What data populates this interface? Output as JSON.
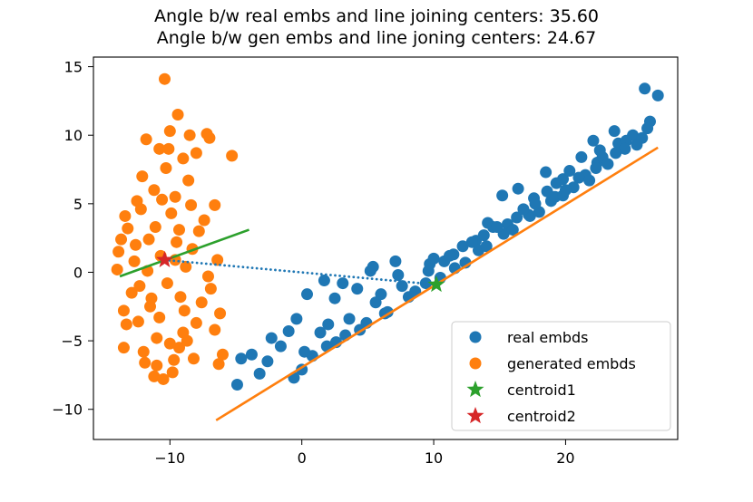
{
  "chart_data": {
    "type": "scatter",
    "title": "Angle b/w real embs and line joining centers: 35.60",
    "subtitle": "Angle b/w gen embs and line joning centers: 24.67",
    "xlabel": "",
    "ylabel": "",
    "xlim": [
      -15.8,
      28.5
    ],
    "ylim": [
      -12.2,
      15.7
    ],
    "x_ticks": [
      -10,
      0,
      10,
      20
    ],
    "y_ticks": [
      -10,
      -5,
      0,
      5,
      10,
      15
    ],
    "x_tick_labels": [
      "−10",
      "0",
      "10",
      "20"
    ],
    "y_tick_labels": [
      "−10",
      "−5",
      "0",
      "5",
      "10",
      "15"
    ],
    "grid": false,
    "legend_position": "lower-right",
    "colors": {
      "real": "#1f77b4",
      "generated": "#ff7f0e",
      "centroid1": "#2ca02c",
      "centroid2": "#d62728"
    },
    "series": [
      {
        "name": "real embds",
        "marker": "circle",
        "points": [
          [
            26.0,
            13.4
          ],
          [
            27.0,
            12.9
          ],
          [
            26.4,
            11.0
          ],
          [
            26.2,
            10.5
          ],
          [
            25.1,
            10.0
          ],
          [
            25.8,
            9.8
          ],
          [
            23.7,
            10.3
          ],
          [
            22.1,
            9.6
          ],
          [
            24.0,
            9.4
          ],
          [
            22.6,
            8.9
          ],
          [
            24.6,
            9.6
          ],
          [
            21.2,
            8.4
          ],
          [
            22.4,
            8.0
          ],
          [
            18.5,
            7.3
          ],
          [
            19.8,
            6.8
          ],
          [
            20.3,
            7.4
          ],
          [
            21.5,
            7.1
          ],
          [
            16.4,
            6.1
          ],
          [
            17.6,
            5.4
          ],
          [
            19.3,
            6.5
          ],
          [
            15.2,
            5.6
          ],
          [
            18.9,
            5.2
          ],
          [
            17.2,
            4.2
          ],
          [
            14.1,
            3.6
          ],
          [
            15.6,
            3.5
          ],
          [
            16.3,
            4.0
          ],
          [
            13.2,
            2.3
          ],
          [
            12.2,
            1.9
          ],
          [
            11.5,
            1.3
          ],
          [
            14.5,
            3.3
          ],
          [
            9.7,
            0.6
          ],
          [
            10.8,
            0.8
          ],
          [
            7.1,
            0.8
          ],
          [
            7.3,
            -0.2
          ],
          [
            5.2,
            0.1
          ],
          [
            3.1,
            -0.8
          ],
          [
            1.7,
            -0.6
          ],
          [
            4.2,
            -1.2
          ],
          [
            2.5,
            -1.9
          ],
          [
            0.4,
            -1.6
          ],
          [
            -0.4,
            -3.4
          ],
          [
            -1.0,
            -4.3
          ],
          [
            -2.3,
            -4.8
          ],
          [
            -3.8,
            -6.0
          ],
          [
            -4.9,
            -8.2
          ],
          [
            -4.6,
            -6.3
          ],
          [
            -2.6,
            -6.5
          ],
          [
            0.0,
            -7.1
          ],
          [
            -0.6,
            -7.7
          ],
          [
            0.8,
            -6.1
          ],
          [
            -3.2,
            -7.4
          ],
          [
            1.9,
            -5.4
          ],
          [
            3.3,
            -4.6
          ],
          [
            4.9,
            -3.7
          ],
          [
            6.3,
            -3.0
          ],
          [
            8.1,
            -1.8
          ],
          [
            9.4,
            -0.8
          ],
          [
            11.6,
            0.3
          ],
          [
            13.4,
            1.6
          ],
          [
            15.3,
            2.8
          ],
          [
            17.3,
            4.1
          ],
          [
            19.2,
            5.5
          ],
          [
            21.0,
            6.9
          ],
          [
            22.8,
            8.4
          ],
          [
            24.5,
            9.0
          ],
          [
            1.4,
            -4.4
          ],
          [
            3.6,
            -3.4
          ],
          [
            5.6,
            -2.2
          ],
          [
            7.6,
            -1.0
          ],
          [
            9.6,
            0.1
          ],
          [
            11.2,
            1.2
          ],
          [
            12.9,
            2.2
          ],
          [
            14.8,
            3.3
          ],
          [
            16.8,
            4.6
          ],
          [
            18.6,
            5.9
          ],
          [
            20.6,
            6.2
          ],
          [
            22.3,
            7.6
          ],
          [
            23.8,
            8.7
          ],
          [
            2.6,
            -5.1
          ],
          [
            4.4,
            -4.2
          ],
          [
            6.5,
            -2.9
          ],
          [
            8.6,
            -1.4
          ],
          [
            10.5,
            -0.4
          ],
          [
            12.4,
            0.7
          ],
          [
            14.0,
            1.9
          ],
          [
            16.0,
            3.1
          ],
          [
            18.0,
            4.4
          ],
          [
            19.8,
            5.6
          ],
          [
            21.8,
            6.7
          ],
          [
            -1.6,
            -5.4
          ],
          [
            0.2,
            -5.8
          ],
          [
            2.0,
            -3.8
          ],
          [
            6.0,
            -1.6
          ],
          [
            10.0,
            1.0
          ],
          [
            13.8,
            2.7
          ],
          [
            17.7,
            5.0
          ],
          [
            20.0,
            6.0
          ],
          [
            23.2,
            7.9
          ],
          [
            25.4,
            9.3
          ],
          [
            5.4,
            0.4
          ]
        ]
      },
      {
        "name": "generated embds",
        "marker": "circle",
        "points": [
          [
            -10.4,
            14.1
          ],
          [
            -5.3,
            8.5
          ],
          [
            -7.0,
            9.8
          ],
          [
            -8.5,
            10.0
          ],
          [
            -10.0,
            10.3
          ],
          [
            -9.4,
            11.5
          ],
          [
            -7.2,
            10.1
          ],
          [
            -11.8,
            9.7
          ],
          [
            -10.8,
            9.0
          ],
          [
            -8.0,
            8.7
          ],
          [
            -12.1,
            7.0
          ],
          [
            -11.2,
            6.0
          ],
          [
            -13.4,
            4.1
          ],
          [
            -12.5,
            5.2
          ],
          [
            -9.6,
            5.5
          ],
          [
            -6.6,
            4.9
          ],
          [
            -7.4,
            3.8
          ],
          [
            -13.2,
            3.2
          ],
          [
            -13.7,
            2.4
          ],
          [
            -7.8,
            3.0
          ],
          [
            -13.9,
            1.5
          ],
          [
            -12.7,
            0.8
          ],
          [
            -6.4,
            0.9
          ],
          [
            -14.0,
            0.2
          ],
          [
            -12.9,
            -1.5
          ],
          [
            -6.9,
            -1.2
          ],
          [
            -11.5,
            -2.5
          ],
          [
            -6.2,
            -3.0
          ],
          [
            -13.5,
            -2.8
          ],
          [
            -13.3,
            -3.8
          ],
          [
            -8.0,
            -3.7
          ],
          [
            -6.6,
            -4.2
          ],
          [
            -11.0,
            -4.8
          ],
          [
            -13.5,
            -5.5
          ],
          [
            -12.0,
            -5.8
          ],
          [
            -9.3,
            -5.5
          ],
          [
            -8.2,
            -6.3
          ],
          [
            -6.0,
            -6.0
          ],
          [
            -11.0,
            -6.8
          ],
          [
            -9.8,
            -7.3
          ],
          [
            -11.2,
            -7.6
          ],
          [
            -10.5,
            -7.8
          ],
          [
            -6.3,
            -6.7
          ],
          [
            -9.0,
            -4.4
          ],
          [
            -10.7,
            1.2
          ],
          [
            -9.5,
            2.2
          ],
          [
            -8.8,
            0.4
          ],
          [
            -10.2,
            -0.8
          ],
          [
            -11.7,
            0.1
          ],
          [
            -9.2,
            -1.8
          ],
          [
            -10.8,
            -3.3
          ],
          [
            -8.9,
            -2.8
          ],
          [
            -12.3,
            -1.0
          ],
          [
            -9.9,
            4.3
          ],
          [
            -11.1,
            3.3
          ],
          [
            -8.6,
            6.7
          ],
          [
            -10.3,
            7.6
          ],
          [
            -9.0,
            8.3
          ],
          [
            -11.6,
            2.4
          ],
          [
            -8.3,
            1.7
          ],
          [
            -10.0,
            -5.2
          ],
          [
            -12.4,
            -3.6
          ],
          [
            -7.6,
            -2.2
          ],
          [
            -9.6,
            0.9
          ],
          [
            -11.9,
            -6.6
          ],
          [
            -8.4,
            4.9
          ],
          [
            -7.1,
            -0.3
          ],
          [
            -12.6,
            2.0
          ],
          [
            -10.6,
            5.3
          ],
          [
            -9.3,
            3.1
          ],
          [
            -11.4,
            -1.9
          ],
          [
            -8.7,
            -5.0
          ],
          [
            -10.1,
            9.0
          ],
          [
            -9.7,
            -6.4
          ],
          [
            -12.2,
            4.6
          ]
        ]
      },
      {
        "name": "centroid1",
        "marker": "star",
        "points": [
          [
            10.2,
            -0.9
          ]
        ]
      },
      {
        "name": "centroid2",
        "marker": "star",
        "points": [
          [
            -10.4,
            0.9
          ]
        ]
      }
    ],
    "lines": [
      {
        "name": "real fit line",
        "color": "#ff7f0e",
        "style": "solid",
        "points": [
          [
            -6.5,
            -10.8
          ],
          [
            27.0,
            9.1
          ]
        ]
      },
      {
        "name": "gen fit line",
        "color": "#2ca02c",
        "style": "solid",
        "points": [
          [
            -13.8,
            -0.3
          ],
          [
            -4.0,
            3.1
          ]
        ]
      },
      {
        "name": "centers join",
        "color": "#1f77b4",
        "style": "dotted",
        "points": [
          [
            -10.4,
            0.9
          ],
          [
            10.2,
            -0.9
          ]
        ]
      }
    ],
    "legend": [
      {
        "label": "real embds",
        "marker": "circle",
        "color": "#1f77b4"
      },
      {
        "label": "generated embds",
        "marker": "circle",
        "color": "#ff7f0e"
      },
      {
        "label": "centroid1",
        "marker": "star",
        "color": "#2ca02c"
      },
      {
        "label": "centroid2",
        "marker": "star",
        "color": "#d62728"
      }
    ]
  }
}
